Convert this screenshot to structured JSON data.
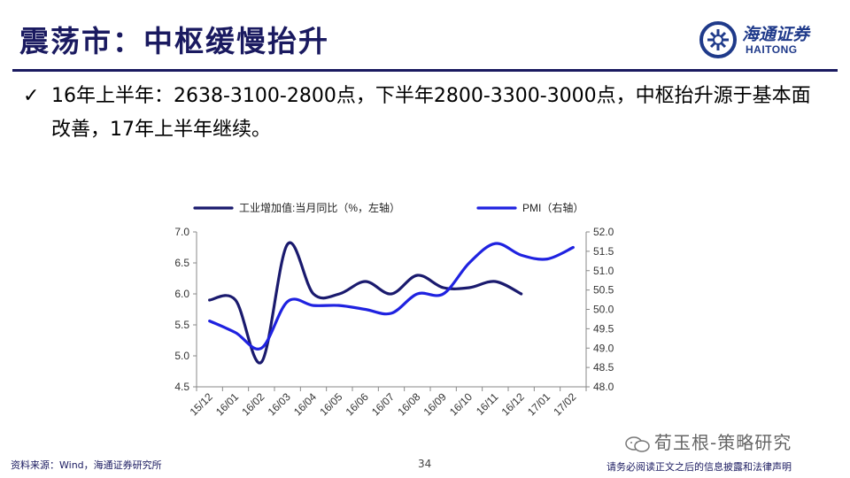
{
  "slide": {
    "title": "震荡市：中枢缓慢抬升",
    "bullet": "16年上半年：2638-3100-2800点，下半年2800-3300-3000点，中枢抬升源于基本面改善，17年上半年继续。",
    "footer_source": "资料来源：Wind，海通证券研究所",
    "page_number": "34",
    "footer_disclaimer": "请务必阅读正文之后的信息披露和法律声明",
    "watermark": "荀玉根-策略研究"
  },
  "logo": {
    "name_cn": "海通证券",
    "name_en": "HAITONG"
  },
  "colors": {
    "title": "#1a1a60",
    "series_industrial": "#1a1a6e",
    "series_pmi": "#1f22e0"
  },
  "chart_data": {
    "type": "line",
    "categories": [
      "15/12",
      "16/01",
      "16/02",
      "16/03",
      "16/04",
      "16/05",
      "16/06",
      "16/07",
      "16/08",
      "16/09",
      "16/10",
      "16/11",
      "16/12",
      "17/01",
      "17/02"
    ],
    "left_axis": {
      "ylim": [
        4.5,
        7.0
      ],
      "ticks": [
        "4.5",
        "5.0",
        "5.5",
        "6.0",
        "6.5",
        "7.0"
      ]
    },
    "right_axis": {
      "ylim": [
        48.0,
        52.0
      ],
      "ticks": [
        "48.0",
        "48.5",
        "49.0",
        "49.5",
        "50.0",
        "50.5",
        "51.0",
        "51.5",
        "52.0"
      ]
    },
    "legend_position": "top",
    "series": [
      {
        "name": "工业增加值:当月同比（%，左轴）",
        "axis": "left",
        "x": [
          0,
          1,
          2,
          3,
          4,
          5,
          6,
          7,
          8,
          9,
          10,
          11,
          12
        ],
        "values": [
          5.9,
          5.9,
          4.9,
          6.8,
          6.0,
          6.0,
          6.2,
          6.0,
          6.3,
          6.1,
          6.1,
          6.2,
          6.0
        ]
      },
      {
        "name": "PMI（右轴）",
        "axis": "right",
        "x": [
          0,
          1,
          2,
          3,
          4,
          5,
          6,
          7,
          8,
          9,
          10,
          11,
          12,
          13,
          14
        ],
        "values": [
          49.7,
          49.4,
          49.0,
          50.2,
          50.1,
          50.1,
          50.0,
          49.9,
          50.4,
          50.4,
          51.2,
          51.7,
          51.4,
          51.3,
          51.6
        ]
      }
    ]
  }
}
